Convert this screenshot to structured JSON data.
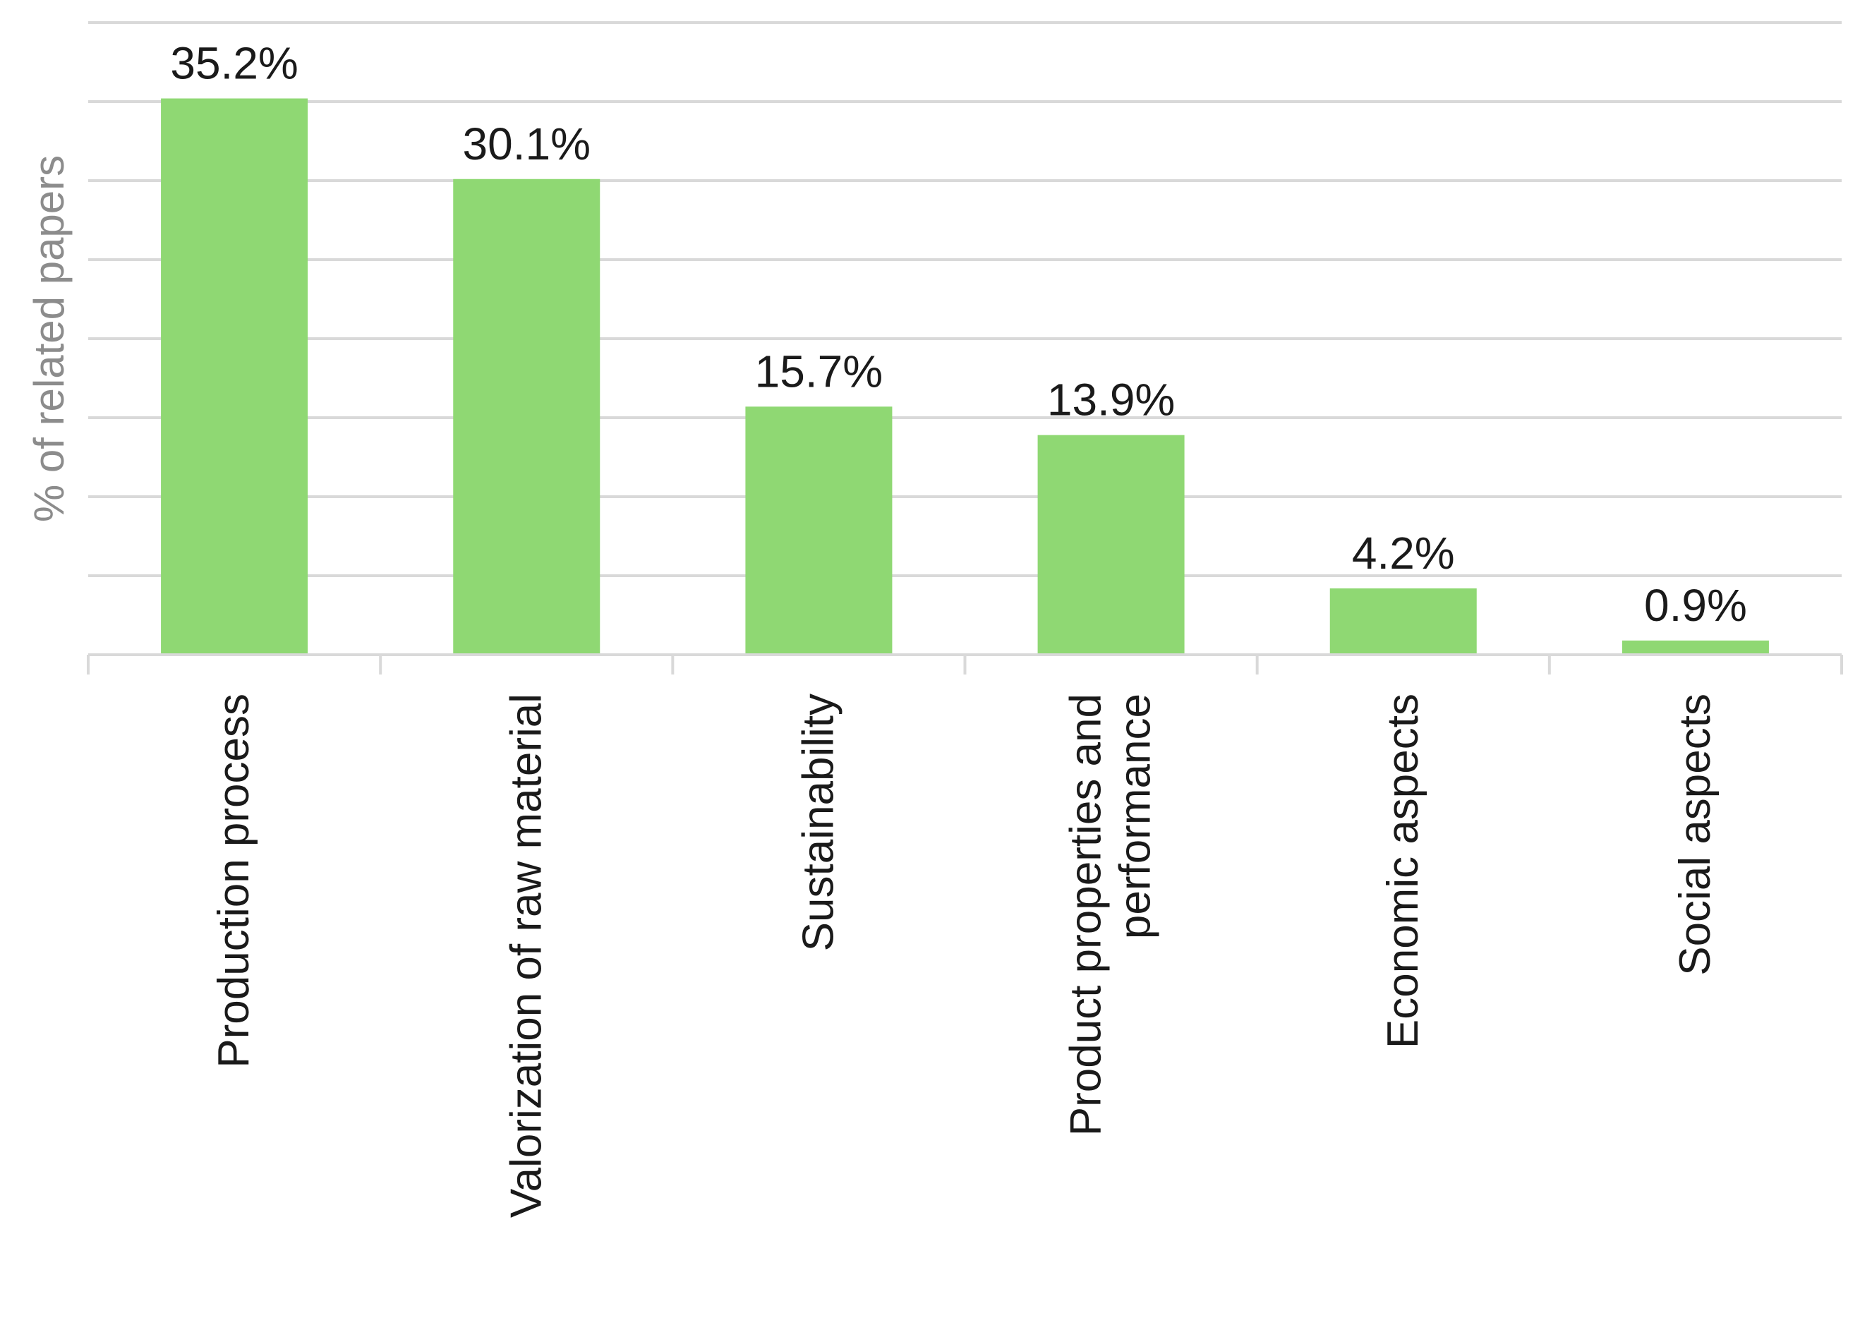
{
  "chart_data": {
    "type": "bar",
    "title": "",
    "xlabel": "",
    "ylabel": "% of related papers",
    "categories": [
      [
        "Production process"
      ],
      [
        "Valorization of raw material"
      ],
      [
        "Sustainability"
      ],
      [
        "Product properties and",
        "performance"
      ],
      [
        "Economic aspects"
      ],
      [
        "Social aspects"
      ]
    ],
    "values": [
      35.2,
      30.1,
      15.7,
      13.9,
      4.2,
      0.9
    ],
    "data_labels": [
      "35.2%",
      "30.1%",
      "15.7%",
      "13.9%",
      "4.2%",
      "0.9%"
    ],
    "ylim": [
      0,
      40
    ],
    "y_tick_step": 5,
    "y_tick_labels_visible": false,
    "grid": true,
    "legend": "none",
    "colors": {
      "bar": "#8fd873",
      "grid": "#d9d9d9",
      "label": "#1a1a1a",
      "axis_title": "#8c8c8c"
    }
  }
}
